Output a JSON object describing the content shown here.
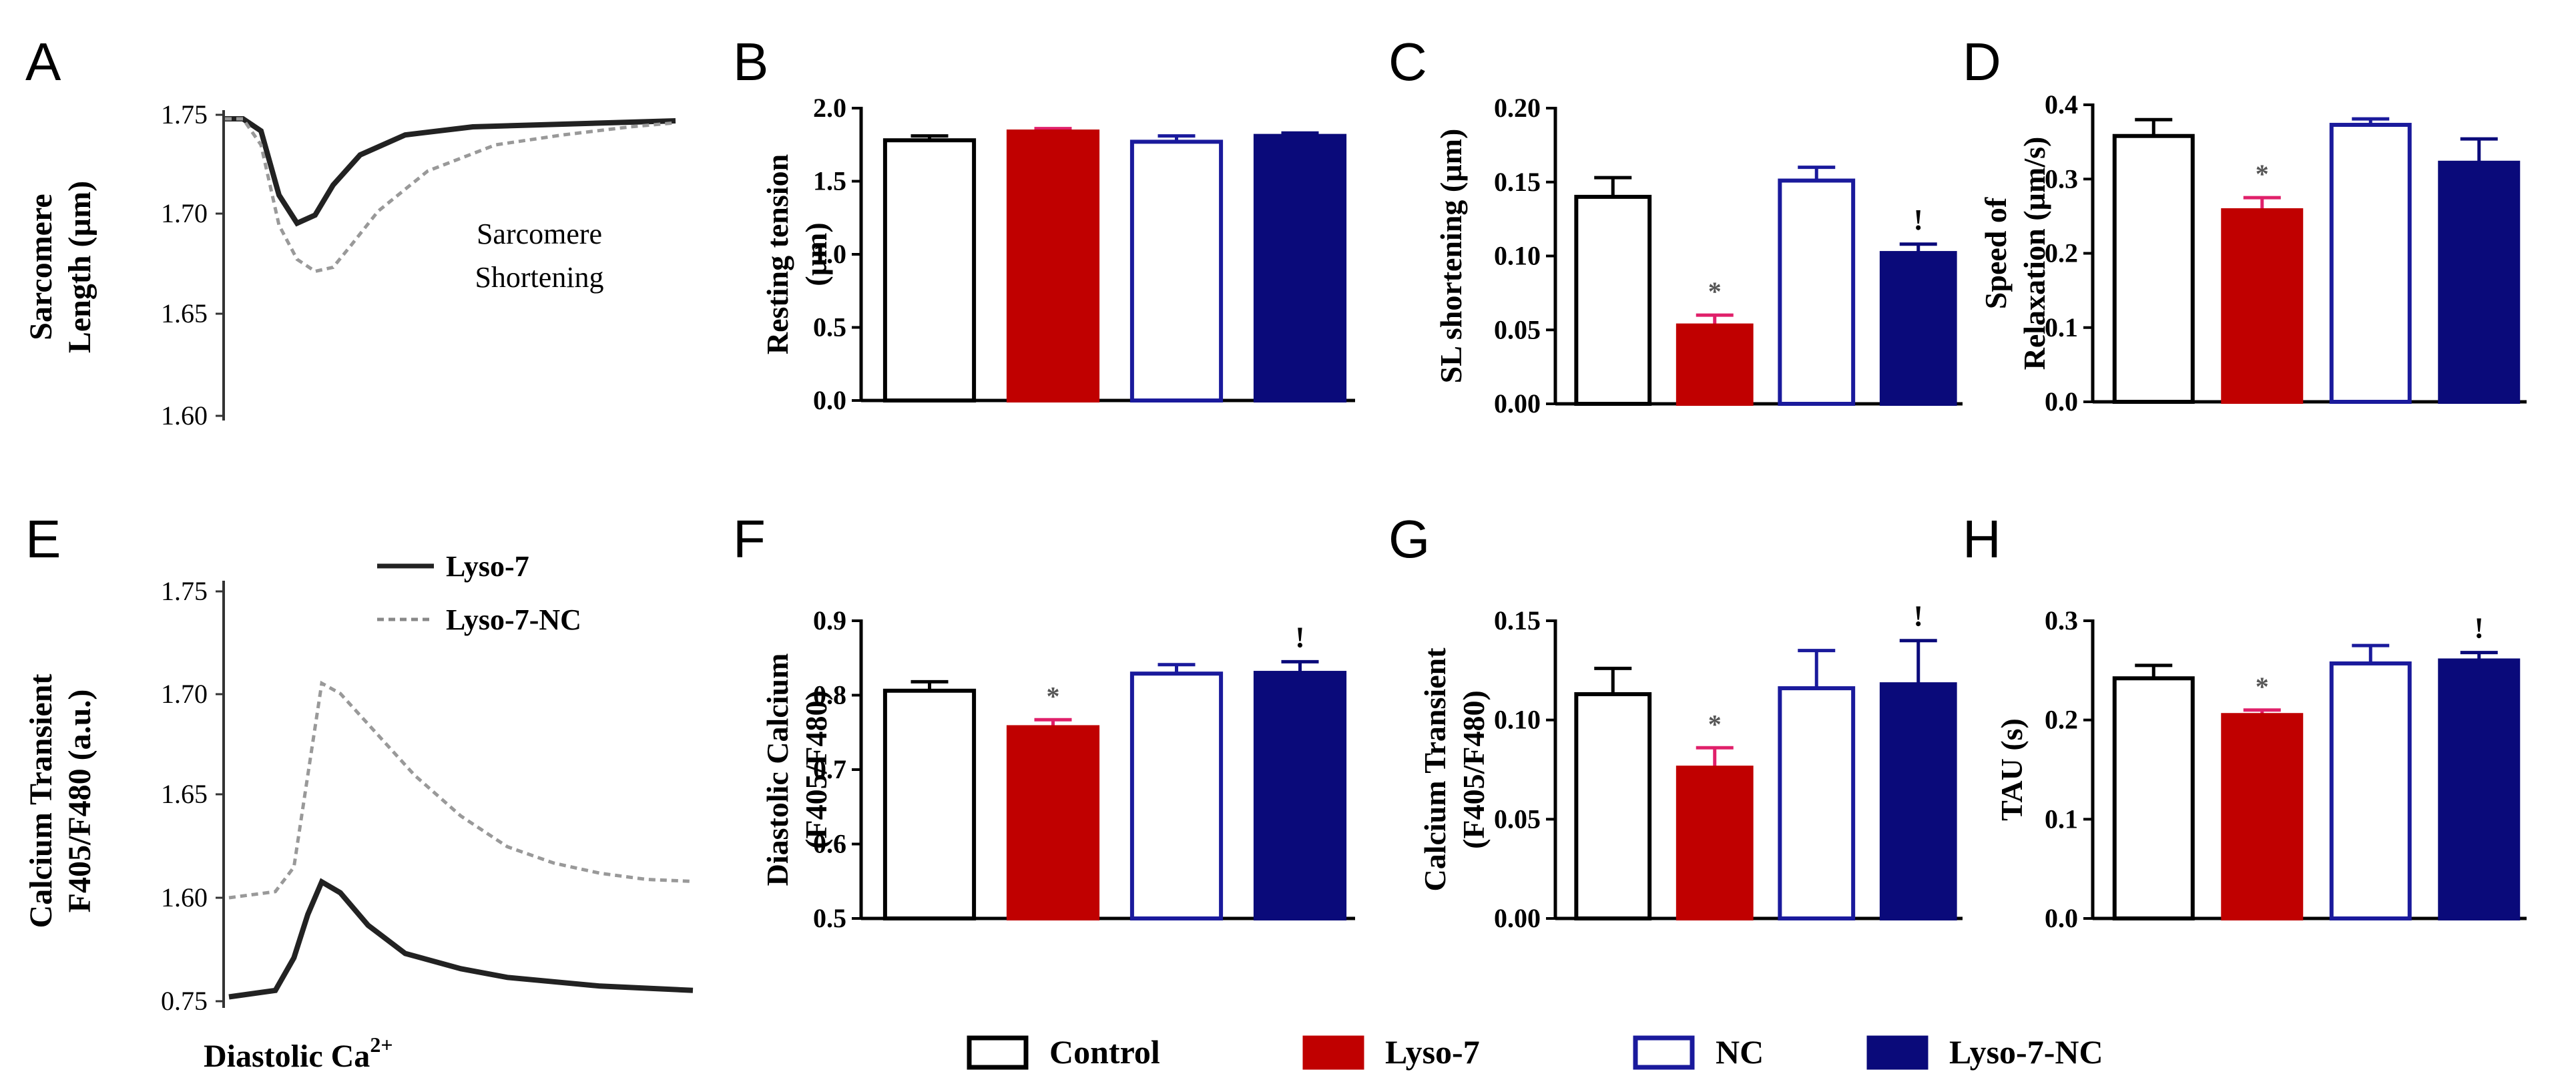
{
  "legend": {
    "items": [
      {
        "label": "Control",
        "style": "outline",
        "color": "#000000"
      },
      {
        "label": "Lyso-7",
        "style": "filled",
        "color": "#c00000"
      },
      {
        "label": "NC",
        "style": "outline",
        "color": "#1a1a9c"
      },
      {
        "label": "Lyso-7-NC",
        "style": "filled",
        "color": "#0a0a7a"
      }
    ]
  },
  "colors": {
    "control": "#000000",
    "lyso7": "#c00000",
    "lyso7_error": "#e0206a",
    "nc": "#1a1a9c",
    "lyso7nc": "#0a0a7a"
  },
  "chart_data": [
    {
      "panel": "A",
      "type": "line",
      "ylabel": "Sarcomere Length (µm)",
      "yticks": [
        "1.75",
        "1.70",
        "1.65",
        "1.60"
      ],
      "annotation": "Sarcomere Shortening",
      "series": [
        {
          "style": "solid",
          "x": [
            0,
            0.04,
            0.08,
            0.12,
            0.16,
            0.2,
            0.24,
            0.3,
            0.4,
            0.55,
            0.7,
            0.85,
            1.0
          ],
          "y": [
            1.748,
            1.748,
            1.742,
            1.71,
            1.696,
            1.7,
            1.715,
            1.73,
            1.74,
            1.744,
            1.745,
            1.746,
            1.747
          ]
        },
        {
          "style": "dashed",
          "x": [
            0,
            0.04,
            0.08,
            0.12,
            0.16,
            0.2,
            0.24,
            0.28,
            0.34,
            0.45,
            0.6,
            0.75,
            0.9,
            1.0
          ],
          "y": [
            1.748,
            1.748,
            1.735,
            1.695,
            1.678,
            1.672,
            1.674,
            1.685,
            1.702,
            1.722,
            1.735,
            1.74,
            1.744,
            1.746
          ]
        }
      ]
    },
    {
      "panel": "B",
      "type": "bar",
      "ylabel": "Resting tension (µm)",
      "yticks": [
        "0.0",
        "0.5",
        "1.0",
        "1.5",
        "2.0"
      ],
      "ylim": [
        0,
        2.0
      ],
      "categories": [
        "Control",
        "Lyso-7",
        "NC",
        "Lyso-7-NC"
      ],
      "values": [
        1.78,
        1.84,
        1.77,
        1.81
      ],
      "errors": [
        0.03,
        0.02,
        0.04,
        0.02
      ],
      "marks": [
        "",
        "",
        "",
        ""
      ]
    },
    {
      "panel": "C",
      "type": "bar",
      "ylabel": "SL shortening (µm)",
      "yticks": [
        "0.00",
        "0.05",
        "0.10",
        "0.15",
        "0.20"
      ],
      "ylim": [
        0,
        0.2
      ],
      "categories": [
        "Control",
        "Lyso-7",
        "NC",
        "Lyso-7-NC"
      ],
      "values": [
        0.14,
        0.053,
        0.151,
        0.102
      ],
      "errors": [
        0.013,
        0.007,
        0.009,
        0.006
      ],
      "marks": [
        "",
        "*",
        "",
        "!"
      ]
    },
    {
      "panel": "D",
      "type": "bar",
      "ylabel": "Speed of Relaxation (µm/s)",
      "yticks": [
        "0.0",
        "0.1",
        "0.2",
        "0.3",
        "0.4"
      ],
      "ylim": [
        0,
        0.4
      ],
      "categories": [
        "Control",
        "Lyso-7",
        "NC",
        "Lyso-7-NC"
      ],
      "values": [
        0.358,
        0.258,
        0.373,
        0.322
      ],
      "errors": [
        0.022,
        0.017,
        0.008,
        0.032
      ],
      "marks": [
        "",
        "*",
        "",
        ""
      ]
    },
    {
      "panel": "E",
      "type": "line",
      "ylabel": "Calcium Transient F405/F480 (a.u.)",
      "xlabel": "Diastolic Ca",
      "xlabel_sup": "2+",
      "yticks": [
        "1.75",
        "1.70",
        "1.65",
        "1.60",
        "0.75"
      ],
      "legend": [
        {
          "name": "Lyso-7",
          "style": "solid"
        },
        {
          "name": "Lyso-7-NC",
          "style": "dashed"
        }
      ],
      "series": [
        {
          "name": "Lyso-7-NC",
          "style": "dashed",
          "x": [
            0,
            0.1,
            0.14,
            0.17,
            0.2,
            0.24,
            0.3,
            0.4,
            0.5,
            0.6,
            0.7,
            0.8,
            0.9,
            1.0
          ],
          "y": [
            1.6,
            1.603,
            1.615,
            1.66,
            1.705,
            1.7,
            1.685,
            1.66,
            1.64,
            1.625,
            1.617,
            1.612,
            1.609,
            1.608
          ]
        },
        {
          "name": "Lyso-7",
          "style": "solid",
          "x": [
            0,
            0.1,
            0.14,
            0.17,
            0.2,
            0.24,
            0.3,
            0.38,
            0.5,
            0.6,
            0.7,
            0.8,
            0.9,
            1.0
          ],
          "y": [
            0.752,
            0.755,
            0.77,
            0.79,
            0.805,
            0.8,
            0.785,
            0.772,
            0.765,
            0.761,
            0.759,
            0.757,
            0.756,
            0.755
          ]
        }
      ]
    },
    {
      "panel": "F",
      "type": "bar",
      "ylabel": "Diastolic Calcium (F405/F480)",
      "yticks": [
        "0.5",
        "0.6",
        "0.7",
        "0.8",
        "0.9"
      ],
      "ylim": [
        0.5,
        0.9
      ],
      "categories": [
        "Control",
        "Lyso-7",
        "NC",
        "Lyso-7-NC"
      ],
      "values": [
        0.806,
        0.757,
        0.829,
        0.83
      ],
      "errors": [
        0.012,
        0.01,
        0.012,
        0.015
      ],
      "marks": [
        "",
        "*",
        "",
        "!"
      ]
    },
    {
      "panel": "G",
      "type": "bar",
      "ylabel": "Calcium Transient (F405/F480)",
      "yticks": [
        "0.00",
        "0.05",
        "0.10",
        "0.15"
      ],
      "ylim": [
        0,
        0.15
      ],
      "categories": [
        "Control",
        "Lyso-7",
        "NC",
        "Lyso-7-NC"
      ],
      "values": [
        0.113,
        0.076,
        0.116,
        0.118
      ],
      "errors": [
        0.013,
        0.01,
        0.019,
        0.022
      ],
      "marks": [
        "",
        "*",
        "",
        "!"
      ]
    },
    {
      "panel": "H",
      "type": "bar",
      "ylabel": "TAU (s)",
      "yticks": [
        "0.0",
        "0.1",
        "0.2",
        "0.3"
      ],
      "ylim": [
        0,
        0.3
      ],
      "categories": [
        "Control",
        "Lyso-7",
        "NC",
        "Lyso-7-NC"
      ],
      "values": [
        0.242,
        0.205,
        0.257,
        0.26
      ],
      "errors": [
        0.013,
        0.005,
        0.018,
        0.008
      ],
      "marks": [
        "",
        "*",
        "",
        "!"
      ]
    }
  ]
}
